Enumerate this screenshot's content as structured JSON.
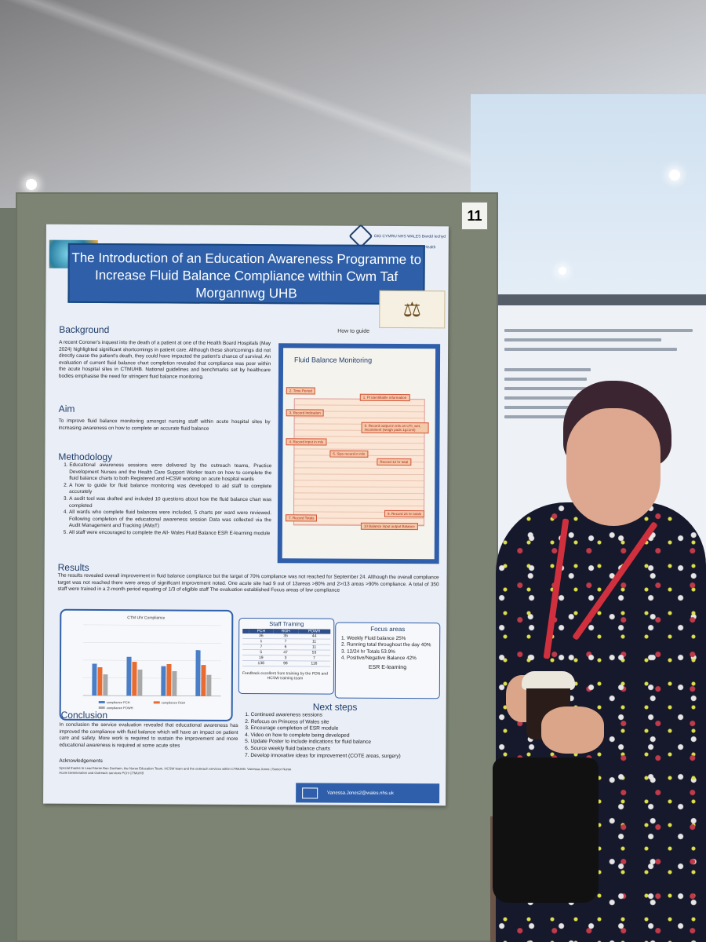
{
  "board_number": "11",
  "poster": {
    "title": "The Introduction of an Education Awareness Programme to Increase Fluid Balance Compliance within Cwm Taf Morgannwg UHB",
    "nhs_logo_text": "GIG CYMRU NHS WALES Bwrdd Iechyd Prifysgol Cwm Taf Morgannwg University Health Board",
    "background_heading": "Background",
    "background_text": "A recent Coroner's inquest into the death of a patient at one of the Health Board Hospitals (May 2024) highlighted significant shortcomings in patient care. Although these shortcomings did not directly cause the patient's death, they could have impacted the patient's chance of survival. An evaluation of current fluid balance chart completion revealed that compliance was poor within the acute hospital sites in CTMUHB. National guidelines and benchmarks set by healthcare bodies emphasise the need for stringent fluid balance monitoring.",
    "aim_heading": "Aim",
    "aim_text": "To improve fluid balance monitoring amongst nursing staff within acute hospital sites by increasing awareness on how to complete an accurate fluid balance",
    "methodology_heading": "Methodology",
    "methodology_items": [
      "Educational awareness sessions were delivered by the outreach teams, Practice Development Nurses and the Health Care Support Worker team on how to complete the fluid balance charts to both Registered and HCSW working on acute hospital wards",
      "A how to guide for fluid balance monitoring was developed to aid staff to complete accurately",
      "A audit tool was drafted and included 10 questions about how the fluid balance chart was completed",
      "All wards who complete fluid balances were included, 5 charts per ward were reviewed. Following completion of the educational awareness session Data was collected via the Audit Management and Tracking (AMaT)",
      "All staff were encouraged to complete the All- Wales Fluid Balance ESR E-learning module"
    ],
    "how_to_label": "How to guide",
    "guide_title": "Fluid Balance Monitoring",
    "guide_callouts": [
      "1. Pt identifiable information",
      "2. Time Period",
      "3. Record Indication",
      "4. Record input in mls",
      "5. Sips record in mls",
      "6. Record output in mls on UTI, wet, incontinent (weigh pads 1g=1ml)",
      "Record 12 hr total",
      "7. Record Totals",
      "9. Record 24 hr totals",
      "10 Balance input output Balance"
    ],
    "results_heading": "Results",
    "results_text": "The results revealed overall improvement in fluid balance compliance but the target of 70% compliance was not reached for September 24. Although the overall compliance target was not reached there were areas of significant improvement noted. One acute site had 9 out of 13areas >80% and 2>/13 areas >90% compliance. A total of 350 staff were trained in a 2-month period equating of 1/3 of eligible staff The evaluation established Focus areas of low compliance",
    "staff_training": {
      "heading": "Staff Training",
      "columns": [
        "",
        "PCH",
        "RGH",
        "POWH"
      ],
      "rows": [
        [
          "",
          "36",
          "35",
          "44"
        ],
        [
          "",
          "1",
          "7",
          "11"
        ],
        [
          "",
          "7",
          "6",
          "11"
        ],
        [
          "",
          "5",
          "47",
          "53"
        ],
        [
          "",
          "19",
          "3",
          "7"
        ],
        [
          "",
          "138",
          "98",
          "116"
        ]
      ],
      "feedback": "Feedback excellent from training by the PDN and HCSW training team"
    },
    "focus_areas": {
      "heading": "Focus areas",
      "items": [
        "Weekly Fluid balance 25%",
        "Running total throughout the day 40%",
        "12/24 hr Totals 53.9%",
        "Positive/Negative Balance 42%"
      ],
      "footer": "ESR E-learning"
    },
    "conclusion_heading": "Conclusion",
    "conclusion_text": "In conclusion the service evaluation revealed that educational awareness has improved the compliance with fluid balance which will have an impact on patient care and safety. More work is required to sustain the improvement and more educational awareness is required at some acute sites",
    "next_steps_heading": "Next steps",
    "next_steps": [
      "Continued awareness sessions",
      "Refocus on Princess of Wales site",
      "Encourage completion of ESR module",
      "Video on how to complete being developed",
      "Update Poster to include indications for fluid balance",
      "Source weekly fluid balance charts",
      "Develop innovative ideas for improvement (COTE areas, surgery)"
    ],
    "ack_heading": "Acknowledgements",
    "ack_text": "Special thanks to Lead Nurse Ben Dunham, the Nurse Education Team, HCSW team and the outreach services within CTMUHB. Vanessa Jones | Senior Nurse Acute Deterioration and Outreach services PCH CTMUHB",
    "contact_email": "Vanessa.Jones2@wales.nhs.uk"
  },
  "chart_data": {
    "type": "bar",
    "title": "CTM Uhr Compliance",
    "categories": [
      "",
      "",
      "",
      ""
    ],
    "series": [
      {
        "name": "compliance PCH",
        "values": [
          45,
          55,
          42,
          65
        ]
      },
      {
        "name": "compliance RGH",
        "values": [
          40,
          48,
          45,
          44
        ]
      },
      {
        "name": "compliance POWH",
        "values": [
          30,
          37,
          35,
          30
        ]
      }
    ],
    "ylim": [
      0,
      100
    ],
    "colors": [
      "#4a7fc8",
      "#ea6b2f",
      "#a8a8a8"
    ]
  }
}
